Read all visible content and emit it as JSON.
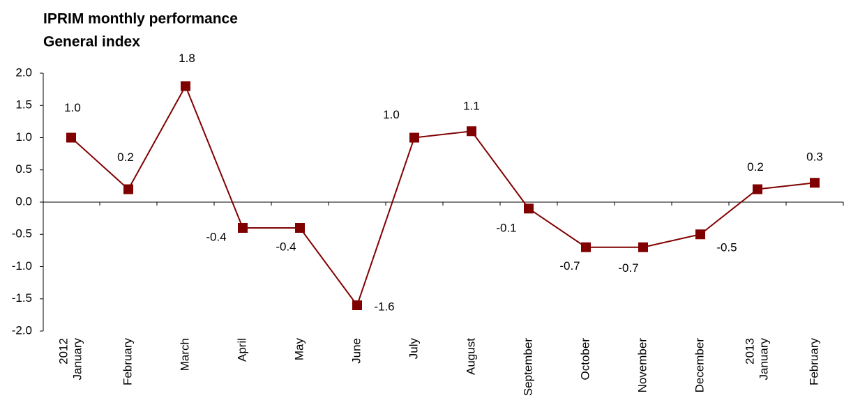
{
  "chart_data": {
    "type": "line",
    "title": "IPRIM monthly performance",
    "subtitle": "General index",
    "categories": [
      "January",
      "February",
      "March",
      "April",
      "May",
      "June",
      "July",
      "August",
      "September",
      "October",
      "November",
      "December",
      "January",
      "February"
    ],
    "years": [
      "2012",
      null,
      null,
      null,
      null,
      null,
      null,
      null,
      null,
      null,
      null,
      null,
      "2013",
      null
    ],
    "series": [
      {
        "name": "General index",
        "color": "#800000",
        "values": [
          1.0,
          0.2,
          1.8,
          -0.4,
          -0.4,
          -1.6,
          1.0,
          1.1,
          -0.1,
          -0.7,
          -0.7,
          -0.5,
          0.2,
          0.3
        ],
        "value_labels": [
          "1.0",
          "0.2",
          "1.8",
          "-0.4",
          "-0.4",
          "-1.6",
          "1.0",
          "1.1",
          "-0.1",
          "-0.7",
          "-0.7",
          "-0.5",
          "0.2",
          "0.3"
        ]
      }
    ],
    "ylim": [
      -2,
      2
    ],
    "yticks": [
      {
        "value": -2,
        "label": "-2.0"
      },
      {
        "value": -1.5,
        "label": "-1.5"
      },
      {
        "value": -1,
        "label": "-1.0"
      },
      {
        "value": -0.5,
        "label": "-0.5"
      },
      {
        "value": 0,
        "label": "0.0"
      },
      {
        "value": 0.5,
        "label": "0.5"
      },
      {
        "value": 1,
        "label": "1.0"
      },
      {
        "value": 1.5,
        "label": "1.5"
      },
      {
        "value": 2,
        "label": "2.0"
      }
    ],
    "grid": false
  }
}
